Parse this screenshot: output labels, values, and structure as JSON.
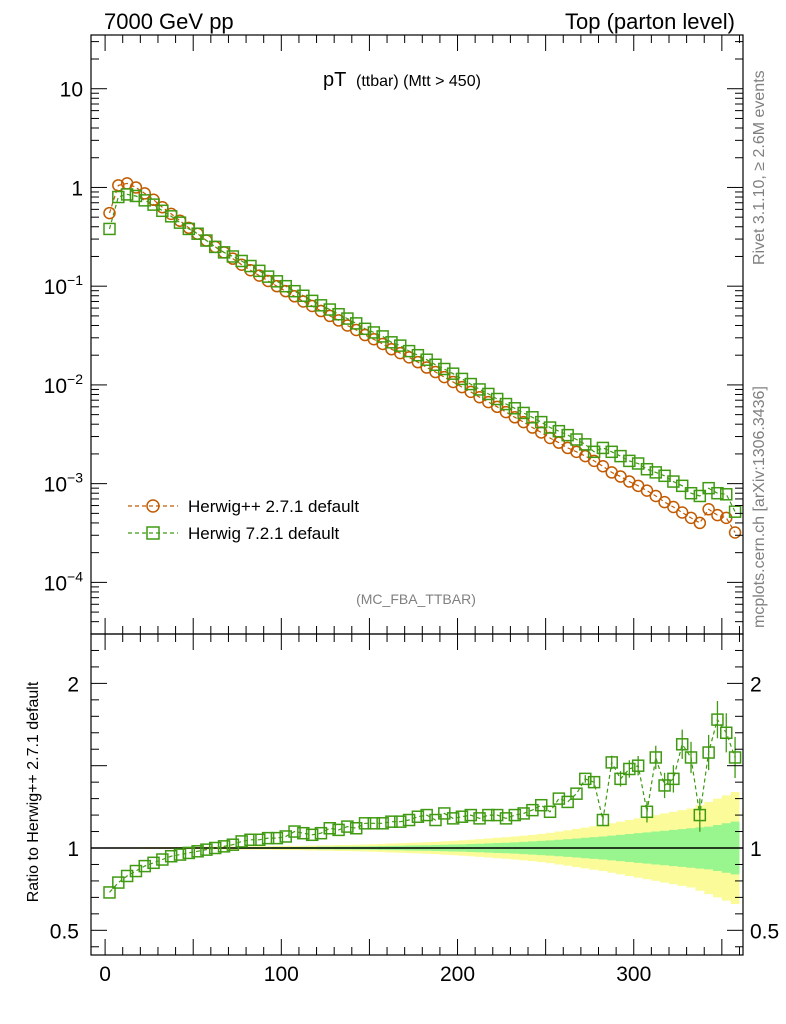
{
  "header": {
    "left": "7000 GeV pp",
    "right": "Top (parton level)"
  },
  "plot_title": {
    "main": "pT",
    "sub": "(ttbar) (Mtt > 450)"
  },
  "side_labels": {
    "rivet": "Rivet 3.1.10, ≥ 2.6M events",
    "mcplots": "mcplots.cern.ch [arXiv:1306.3436]"
  },
  "analysis_tag": "(MC_FBA_TTBAR)",
  "ratio_ylabel": "Ratio to Herwig++ 2.7.1 default",
  "colors": {
    "herwigpp": "#c25a00",
    "herwig7": "#3f9a12",
    "band_inner": "#99f58e",
    "band_outer": "#fbfb9a"
  },
  "chart_data": [
    {
      "type": "scatter",
      "panel": "main",
      "yscale": "log",
      "xlim": [
        -8,
        362
      ],
      "ylim": [
        3e-05,
        35
      ],
      "ytick_labels": [
        "10",
        "1",
        "10−1",
        "10−2",
        "10−3",
        "10−4"
      ],
      "ytick_values": [
        10,
        1,
        0.1,
        0.01,
        0.001,
        0.0001
      ],
      "grid": false,
      "legend_position": "bottom-left",
      "series": [
        {
          "name": "Herwig++ 2.7.1 default",
          "marker": "circle",
          "x": [
            2.5,
            7.5,
            12.5,
            17.5,
            22.5,
            27.5,
            32.5,
            37.5,
            42.5,
            47.5,
            52.5,
            57.5,
            62.5,
            67.5,
            72.5,
            77.5,
            82.5,
            87.5,
            92.5,
            97.5,
            102.5,
            107.5,
            112.5,
            117.5,
            122.5,
            127.5,
            132.5,
            137.5,
            142.5,
            147.5,
            152.5,
            157.5,
            162.5,
            167.5,
            172.5,
            177.5,
            182.5,
            187.5,
            192.5,
            197.5,
            202.5,
            207.5,
            212.5,
            217.5,
            222.5,
            227.5,
            232.5,
            237.5,
            242.5,
            247.5,
            252.5,
            257.5,
            262.5,
            267.5,
            272.5,
            277.5,
            282.5,
            287.5,
            292.5,
            297.5,
            302.5,
            307.5,
            312.5,
            317.5,
            322.5,
            327.5,
            332.5,
            337.5,
            342.5,
            347.5,
            352.5,
            357.5
          ],
          "y": [
            0.55,
            1.05,
            1.1,
            1.0,
            0.87,
            0.75,
            0.63,
            0.54,
            0.46,
            0.39,
            0.34,
            0.29,
            0.25,
            0.22,
            0.19,
            0.165,
            0.145,
            0.128,
            0.113,
            0.1,
            0.089,
            0.079,
            0.07,
            0.063,
            0.056,
            0.05,
            0.045,
            0.04,
            0.036,
            0.032,
            0.029,
            0.026,
            0.023,
            0.021,
            0.019,
            0.017,
            0.015,
            0.0135,
            0.012,
            0.0107,
            0.0095,
            0.0085,
            0.0075,
            0.0067,
            0.006,
            0.0053,
            0.0047,
            0.0042,
            0.0037,
            0.0033,
            0.0029,
            0.0026,
            0.0023,
            0.0021,
            0.0019,
            0.0017,
            0.0015,
            0.0013,
            0.00118,
            0.00105,
            0.00095,
            0.00085,
            0.00075,
            0.00065,
            0.00058,
            0.00051,
            0.00045,
            0.0004,
            0.00055,
            0.00048,
            0.00045,
            0.00032
          ]
        },
        {
          "name": "Herwig 7.2.1 default",
          "marker": "square",
          "x": [
            2.5,
            7.5,
            12.5,
            17.5,
            22.5,
            27.5,
            32.5,
            37.5,
            42.5,
            47.5,
            52.5,
            57.5,
            62.5,
            67.5,
            72.5,
            77.5,
            82.5,
            87.5,
            92.5,
            97.5,
            102.5,
            107.5,
            112.5,
            117.5,
            122.5,
            127.5,
            132.5,
            137.5,
            142.5,
            147.5,
            152.5,
            157.5,
            162.5,
            167.5,
            172.5,
            177.5,
            182.5,
            187.5,
            192.5,
            197.5,
            202.5,
            207.5,
            212.5,
            217.5,
            222.5,
            227.5,
            232.5,
            237.5,
            242.5,
            247.5,
            252.5,
            257.5,
            262.5,
            267.5,
            272.5,
            277.5,
            282.5,
            287.5,
            292.5,
            297.5,
            302.5,
            307.5,
            312.5,
            317.5,
            322.5,
            327.5,
            332.5,
            337.5,
            342.5,
            347.5,
            352.5,
            357.5
          ],
          "y": [
            0.38,
            0.8,
            0.85,
            0.82,
            0.74,
            0.67,
            0.58,
            0.51,
            0.44,
            0.38,
            0.34,
            0.29,
            0.25,
            0.22,
            0.2,
            0.18,
            0.16,
            0.143,
            0.125,
            0.112,
            0.1,
            0.089,
            0.08,
            0.071,
            0.064,
            0.058,
            0.052,
            0.047,
            0.042,
            0.037,
            0.034,
            0.031,
            0.027,
            0.025,
            0.022,
            0.02,
            0.018,
            0.016,
            0.0145,
            0.013,
            0.0115,
            0.0102,
            0.009,
            0.0081,
            0.0072,
            0.0064,
            0.0058,
            0.0052,
            0.0047,
            0.0042,
            0.0037,
            0.0034,
            0.0031,
            0.0028,
            0.0025,
            0.0021,
            0.0023,
            0.0021,
            0.0019,
            0.0017,
            0.0016,
            0.0014,
            0.0013,
            0.0012,
            0.00105,
            0.00095,
            0.0008,
            0.00075,
            0.0009,
            0.0008,
            0.00078,
            0.00052
          ]
        }
      ]
    },
    {
      "type": "scatter",
      "panel": "ratio",
      "yscale": "linear",
      "ylim": [
        0.35,
        2.3
      ],
      "xlim": [
        -8,
        362
      ],
      "ylabel": "Ratio to Herwig++ 2.7.1 default",
      "ytick_labels": [
        "2",
        "1",
        "0.5"
      ],
      "ytick_values": [
        2,
        1,
        0.5
      ],
      "xtick_labels": [
        "0",
        "100",
        "200",
        "300"
      ],
      "xtick_values": [
        0,
        100,
        200,
        300
      ],
      "reference": 1,
      "band": {
        "x": [
          0,
          5,
          10,
          15,
          20,
          25,
          30,
          35,
          40,
          45,
          50,
          55,
          60,
          65,
          70,
          75,
          80,
          85,
          90,
          95,
          100,
          105,
          110,
          115,
          120,
          125,
          130,
          135,
          140,
          145,
          150,
          155,
          160,
          165,
          170,
          175,
          180,
          185,
          190,
          195,
          200,
          205,
          210,
          215,
          220,
          225,
          230,
          235,
          240,
          245,
          250,
          255,
          260,
          265,
          270,
          275,
          280,
          285,
          290,
          295,
          300,
          305,
          310,
          315,
          320,
          325,
          330,
          335,
          340,
          345,
          350,
          355,
          360
        ],
        "inner_halfwidth": [
          0.002,
          0.002,
          0.002,
          0.002,
          0.002,
          0.003,
          0.003,
          0.003,
          0.003,
          0.003,
          0.003,
          0.004,
          0.004,
          0.004,
          0.004,
          0.005,
          0.005,
          0.005,
          0.005,
          0.006,
          0.006,
          0.006,
          0.007,
          0.007,
          0.008,
          0.008,
          0.009,
          0.009,
          0.01,
          0.01,
          0.011,
          0.012,
          0.013,
          0.014,
          0.015,
          0.016,
          0.017,
          0.018,
          0.02,
          0.021,
          0.022,
          0.024,
          0.026,
          0.028,
          0.03,
          0.032,
          0.034,
          0.037,
          0.04,
          0.043,
          0.046,
          0.05,
          0.054,
          0.058,
          0.062,
          0.066,
          0.07,
          0.075,
          0.08,
          0.085,
          0.09,
          0.095,
          0.1,
          0.105,
          0.11,
          0.115,
          0.12,
          0.125,
          0.13,
          0.14,
          0.15,
          0.16,
          0.17
        ],
        "outer_halfwidth": [
          0.004,
          0.004,
          0.004,
          0.004,
          0.005,
          0.005,
          0.006,
          0.006,
          0.006,
          0.007,
          0.007,
          0.008,
          0.008,
          0.008,
          0.009,
          0.01,
          0.01,
          0.011,
          0.011,
          0.012,
          0.013,
          0.013,
          0.014,
          0.015,
          0.016,
          0.017,
          0.018,
          0.019,
          0.02,
          0.021,
          0.023,
          0.025,
          0.027,
          0.029,
          0.031,
          0.033,
          0.035,
          0.037,
          0.04,
          0.043,
          0.046,
          0.05,
          0.054,
          0.058,
          0.062,
          0.066,
          0.07,
          0.075,
          0.08,
          0.086,
          0.092,
          0.1,
          0.108,
          0.116,
          0.124,
          0.132,
          0.14,
          0.15,
          0.16,
          0.17,
          0.18,
          0.19,
          0.2,
          0.21,
          0.22,
          0.23,
          0.24,
          0.26,
          0.28,
          0.3,
          0.32,
          0.34,
          0.36
        ]
      },
      "series": [
        {
          "name": "Herwig 7.2.1 default",
          "marker": "square",
          "x": [
            2.5,
            7.5,
            12.5,
            17.5,
            22.5,
            27.5,
            32.5,
            37.5,
            42.5,
            47.5,
            52.5,
            57.5,
            62.5,
            67.5,
            72.5,
            77.5,
            82.5,
            87.5,
            92.5,
            97.5,
            102.5,
            107.5,
            112.5,
            117.5,
            122.5,
            127.5,
            132.5,
            137.5,
            142.5,
            147.5,
            152.5,
            157.5,
            162.5,
            167.5,
            172.5,
            177.5,
            182.5,
            187.5,
            192.5,
            197.5,
            202.5,
            207.5,
            212.5,
            217.5,
            222.5,
            227.5,
            232.5,
            237.5,
            242.5,
            247.5,
            252.5,
            257.5,
            262.5,
            267.5,
            272.5,
            277.5,
            282.5,
            287.5,
            292.5,
            297.5,
            302.5,
            307.5,
            312.5,
            317.5,
            322.5,
            327.5,
            332.5,
            337.5,
            342.5,
            347.5,
            352.5,
            357.5
          ],
          "y": [
            0.73,
            0.79,
            0.83,
            0.86,
            0.89,
            0.91,
            0.93,
            0.95,
            0.96,
            0.97,
            0.98,
            0.99,
            1.0,
            1.01,
            1.02,
            1.04,
            1.05,
            1.05,
            1.06,
            1.06,
            1.07,
            1.1,
            1.09,
            1.08,
            1.09,
            1.12,
            1.11,
            1.13,
            1.12,
            1.15,
            1.15,
            1.15,
            1.16,
            1.16,
            1.17,
            1.19,
            1.2,
            1.17,
            1.21,
            1.18,
            1.19,
            1.2,
            1.18,
            1.2,
            1.2,
            1.18,
            1.2,
            1.21,
            1.23,
            1.26,
            1.22,
            1.3,
            1.28,
            1.33,
            1.42,
            1.4,
            1.17,
            1.52,
            1.42,
            1.48,
            1.5,
            1.22,
            1.55,
            1.38,
            1.42,
            1.63,
            1.55,
            1.2,
            1.58,
            1.78,
            1.7,
            1.55
          ]
        }
      ]
    }
  ]
}
